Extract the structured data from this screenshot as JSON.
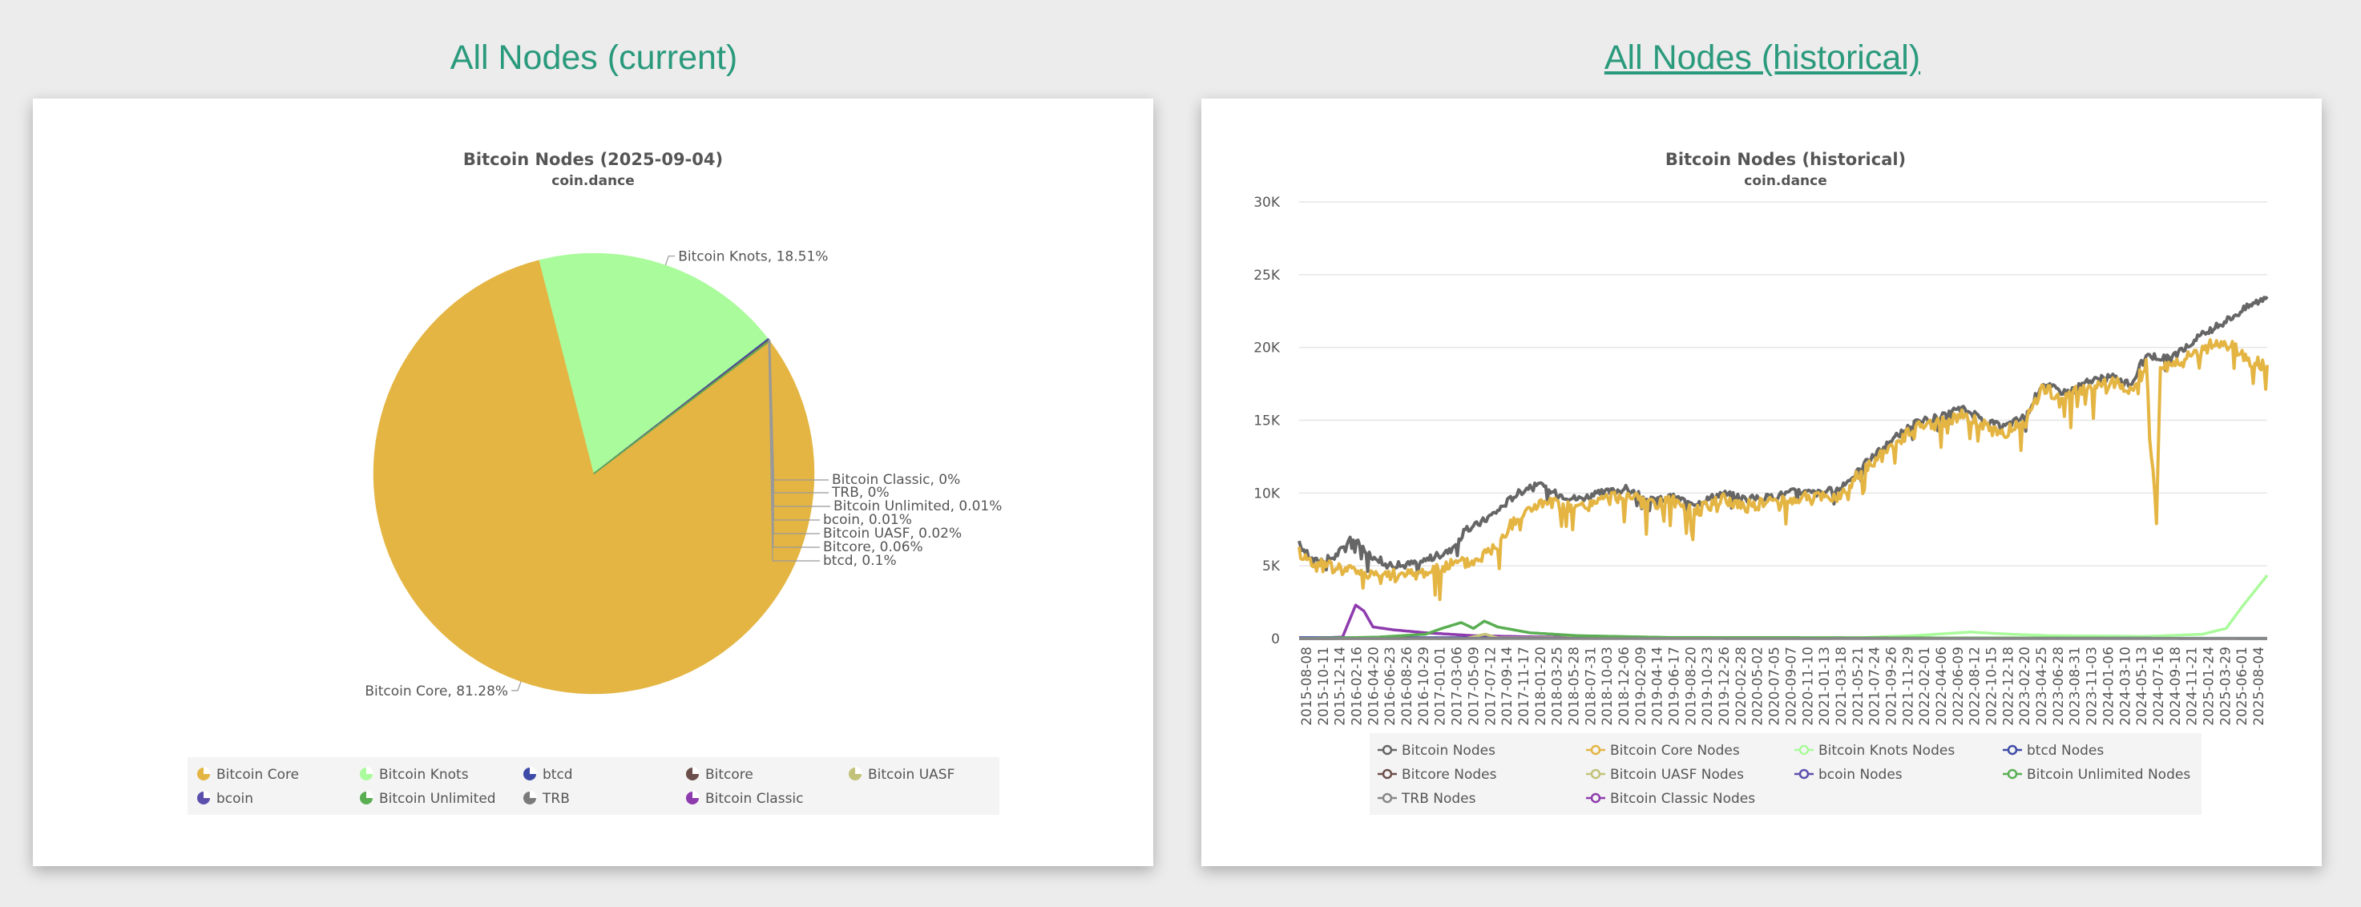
{
  "headings": {
    "current": "All Nodes (current)",
    "historical": "All Nodes (historical)"
  },
  "colors": {
    "heading": "#2a9a7c",
    "background": "#ececec"
  },
  "chart_data": [
    {
      "type": "pie",
      "title": "Bitcoin Nodes (2025-09-04)",
      "subtitle": "coin.dance",
      "slices": [
        {
          "name": "Bitcoin Core",
          "value": 81.28,
          "label": "Bitcoin Core, 81.28%",
          "color": "#e4b543"
        },
        {
          "name": "Bitcoin Knots",
          "value": 18.51,
          "label": "Bitcoin Knots, 18.51%",
          "color": "#aafb9b"
        },
        {
          "name": "btcd",
          "value": 0.1,
          "label": "btcd, 0.1%",
          "color": "#3e4ba6"
        },
        {
          "name": "Bitcore",
          "value": 0.06,
          "label": "Bitcore, 0.06%",
          "color": "#6b4f4a"
        },
        {
          "name": "Bitcoin UASF",
          "value": 0.02,
          "label": "Bitcoin UASF, 0.02%",
          "color": "#c2c27a"
        },
        {
          "name": "bcoin",
          "value": 0.01,
          "label": "bcoin, 0.01%",
          "color": "#5b4fae"
        },
        {
          "name": "Bitcoin Unlimited",
          "value": 0.01,
          "label": "Bitcoin Unlimited, 0.01%",
          "color": "#5aae52"
        },
        {
          "name": "TRB",
          "value": 0,
          "label": "TRB, 0%",
          "color": "#7a7a7a"
        },
        {
          "name": "Bitcoin Classic",
          "value": 0,
          "label": "Bitcoin Classic, 0%",
          "color": "#8e3bae"
        }
      ],
      "legend": {
        "placement": "bottom",
        "entries": [
          "Bitcoin Core",
          "Bitcoin Knots",
          "btcd",
          "Bitcore",
          "Bitcoin UASF",
          "bcoin",
          "Bitcoin Unlimited",
          "TRB",
          "Bitcoin Classic"
        ]
      }
    },
    {
      "type": "line",
      "title": "Bitcoin Nodes (historical)",
      "subtitle": "coin.dance",
      "ylim": [
        0,
        30000
      ],
      "yticks": [
        0,
        5000,
        10000,
        15000,
        20000,
        25000,
        30000
      ],
      "ytick_labels": [
        "0",
        "5K",
        "10K",
        "15K",
        "20K",
        "25K",
        "30K"
      ],
      "grid": true,
      "x_tick_labels": [
        "2015-08-08",
        "2015-10-11",
        "2015-12-14",
        "2016-02-16",
        "2016-04-20",
        "2016-06-23",
        "2016-08-26",
        "2016-10-29",
        "2017-01-01",
        "2017-03-06",
        "2017-05-09",
        "2017-07-12",
        "2017-09-14",
        "2017-11-17",
        "2018-01-20",
        "2018-03-25",
        "2018-05-28",
        "2018-07-31",
        "2018-10-03",
        "2018-12-06",
        "2019-02-09",
        "2019-04-14",
        "2019-06-17",
        "2019-08-20",
        "2019-10-23",
        "2019-12-26",
        "2020-02-28",
        "2020-05-02",
        "2020-07-05",
        "2020-09-07",
        "2020-11-10",
        "2021-01-13",
        "2021-03-18",
        "2021-05-21",
        "2021-07-24",
        "2021-09-26",
        "2021-11-29",
        "2022-02-01",
        "2022-04-06",
        "2022-06-09",
        "2022-08-12",
        "2022-10-15",
        "2022-12-18",
        "2023-02-20",
        "2023-04-25",
        "2023-06-28",
        "2023-08-31",
        "2023-11-03",
        "2024-01-06",
        "2024-03-10",
        "2024-05-13",
        "2024-07-16",
        "2024-09-18",
        "2024-11-21",
        "2025-01-24",
        "2025-03-29",
        "2025-06-01",
        "2025-08-04"
      ],
      "x_range": [
        "2015-08-08",
        "2025-09-04"
      ],
      "series": [
        {
          "name": "Bitcoin Nodes",
          "color": "#666666",
          "points": [
            [
              "2015-08-08",
              6500
            ],
            [
              "2015-10-01",
              5300
            ],
            [
              "2015-12-20",
              5600
            ],
            [
              "2016-03-01",
              7000
            ],
            [
              "2016-05-01",
              5800
            ],
            [
              "2016-07-01",
              5200
            ],
            [
              "2016-09-01",
              5000
            ],
            [
              "2016-12-01",
              5400
            ],
            [
              "2017-03-01",
              6000
            ],
            [
              "2017-05-01",
              7400
            ],
            [
              "2017-07-01",
              8000
            ],
            [
              "2017-09-01",
              8800
            ],
            [
              "2017-11-01",
              9800
            ],
            [
              "2018-01-20",
              10700
            ],
            [
              "2018-04-01",
              10000
            ],
            [
              "2018-07-01",
              9600
            ],
            [
              "2018-10-01",
              10000
            ],
            [
              "2019-01-01",
              10300
            ],
            [
              "2019-04-01",
              9500
            ],
            [
              "2019-07-01",
              9700
            ],
            [
              "2019-10-01",
              9300
            ],
            [
              "2020-01-01",
              10000
            ],
            [
              "2020-04-01",
              9600
            ],
            [
              "2020-07-01",
              9700
            ],
            [
              "2020-10-01",
              10100
            ],
            [
              "2021-01-01",
              10000
            ],
            [
              "2021-04-01",
              10300
            ],
            [
              "2021-06-01",
              11700
            ],
            [
              "2021-09-01",
              13000
            ],
            [
              "2021-11-01",
              14000
            ],
            [
              "2022-01-01",
              14800
            ],
            [
              "2022-04-01",
              15200
            ],
            [
              "2022-07-01",
              15800
            ],
            [
              "2022-10-01",
              15000
            ],
            [
              "2022-12-01",
              14500
            ],
            [
              "2023-03-01",
              15300
            ],
            [
              "2023-05-01",
              17500
            ],
            [
              "2023-08-01",
              16900
            ],
            [
              "2023-11-01",
              17700
            ],
            [
              "2024-02-01",
              18000
            ],
            [
              "2024-04-01",
              17400
            ],
            [
              "2024-06-01",
              19500
            ],
            [
              "2024-09-01",
              19200
            ],
            [
              "2024-11-01",
              20000
            ],
            [
              "2025-01-01",
              20900
            ],
            [
              "2025-03-01",
              21500
            ],
            [
              "2025-05-01",
              22200
            ],
            [
              "2025-07-01",
              22900
            ],
            [
              "2025-09-04",
              23500
            ]
          ]
        },
        {
          "name": "Bitcoin Core Nodes",
          "color": "#e4b543",
          "points": [
            [
              "2015-08-08",
              6000
            ],
            [
              "2015-10-01",
              5100
            ],
            [
              "2015-12-20",
              4900
            ],
            [
              "2016-03-01",
              4700
            ],
            [
              "2016-06-01",
              4500
            ],
            [
              "2016-09-01",
              4300
            ],
            [
              "2016-12-01",
              4600
            ],
            [
              "2017-03-01",
              5100
            ],
            [
              "2017-06-01",
              5300
            ],
            [
              "2017-09-01",
              6500
            ],
            [
              "2017-11-01",
              8000
            ],
            [
              "2018-01-20",
              9200
            ],
            [
              "2018-04-01",
              9300
            ],
            [
              "2018-07-01",
              8900
            ],
            [
              "2018-10-01",
              9500
            ],
            [
              "2019-01-01",
              9900
            ],
            [
              "2019-04-01",
              9100
            ],
            [
              "2019-07-01",
              9400
            ],
            [
              "2019-10-01",
              8800
            ],
            [
              "2020-01-01",
              9600
            ],
            [
              "2020-04-01",
              9100
            ],
            [
              "2020-07-01",
              9400
            ],
            [
              "2020-10-01",
              9700
            ],
            [
              "2021-01-01",
              9600
            ],
            [
              "2021-04-01",
              9900
            ],
            [
              "2021-06-01",
              11200
            ],
            [
              "2021-09-01",
              12600
            ],
            [
              "2021-11-01",
              13600
            ],
            [
              "2022-01-01",
              14400
            ],
            [
              "2022-04-01",
              14800
            ],
            [
              "2022-07-01",
              15400
            ],
            [
              "2022-10-01",
              14600
            ],
            [
              "2022-12-01",
              14000
            ],
            [
              "2023-03-01",
              14900
            ],
            [
              "2023-05-01",
              17200
            ],
            [
              "2023-08-01",
              16600
            ],
            [
              "2023-11-01",
              17300
            ],
            [
              "2024-02-01",
              17600
            ],
            [
              "2024-04-01",
              16900
            ],
            [
              "2024-06-01",
              19000
            ],
            [
              "2024-07-10",
              8000
            ],
            [
              "2024-07-25",
              19000
            ],
            [
              "2024-09-01",
              18700
            ],
            [
              "2024-11-01",
              19200
            ],
            [
              "2025-01-01",
              19900
            ],
            [
              "2025-03-01",
              20400
            ],
            [
              "2025-05-01",
              20000
            ],
            [
              "2025-07-01",
              19100
            ],
            [
              "2025-09-04",
              18800
            ]
          ]
        },
        {
          "name": "Bitcoin Knots Nodes",
          "color": "#aafb9b",
          "points": [
            [
              "2015-08-08",
              0
            ],
            [
              "2021-06-01",
              50
            ],
            [
              "2022-01-01",
              200
            ],
            [
              "2022-08-01",
              450
            ],
            [
              "2023-01-01",
              300
            ],
            [
              "2023-06-01",
              200
            ],
            [
              "2024-06-01",
              150
            ],
            [
              "2025-01-01",
              300
            ],
            [
              "2025-04-01",
              700
            ],
            [
              "2025-06-01",
              2200
            ],
            [
              "2025-09-04",
              4350
            ]
          ]
        },
        {
          "name": "btcd Nodes",
          "color": "#3e4ba6",
          "points": [
            [
              "2015-08-08",
              60
            ],
            [
              "2025-09-04",
              20
            ]
          ]
        },
        {
          "name": "Bitcore Nodes",
          "color": "#6b4f4a",
          "points": [
            [
              "2015-08-08",
              0
            ],
            [
              "2016-06-01",
              20
            ],
            [
              "2025-09-04",
              15
            ]
          ]
        },
        {
          "name": "Bitcoin UASF Nodes",
          "color": "#c2c27a",
          "points": [
            [
              "2015-08-08",
              0
            ],
            [
              "2017-05-01",
              0
            ],
            [
              "2017-07-15",
              300
            ],
            [
              "2017-09-01",
              50
            ],
            [
              "2025-09-04",
              5
            ]
          ]
        },
        {
          "name": "bcoin Nodes",
          "color": "#5b4fae",
          "points": [
            [
              "2015-08-08",
              0
            ],
            [
              "2017-01-01",
              10
            ],
            [
              "2025-09-04",
              5
            ]
          ]
        },
        {
          "name": "Bitcoin Unlimited Nodes",
          "color": "#5aae52",
          "points": [
            [
              "2015-08-08",
              0
            ],
            [
              "2016-06-01",
              100
            ],
            [
              "2016-12-01",
              300
            ],
            [
              "2017-02-01",
              700
            ],
            [
              "2017-04-15",
              1100
            ],
            [
              "2017-06-01",
              700
            ],
            [
              "2017-07-12",
              1200
            ],
            [
              "2017-09-01",
              800
            ],
            [
              "2018-01-01",
              400
            ],
            [
              "2018-07-01",
              200
            ],
            [
              "2019-06-01",
              80
            ],
            [
              "2025-09-04",
              5
            ]
          ]
        },
        {
          "name": "TRB Nodes",
          "color": "#888888",
          "points": [
            [
              "2015-08-08",
              0
            ],
            [
              "2025-09-04",
              5
            ]
          ]
        },
        {
          "name": "Bitcoin Classic Nodes",
          "color": "#8e3bae",
          "points": [
            [
              "2015-08-08",
              0
            ],
            [
              "2016-01-20",
              100
            ],
            [
              "2016-03-10",
              2300
            ],
            [
              "2016-04-10",
              1900
            ],
            [
              "2016-05-15",
              800
            ],
            [
              "2016-08-01",
              600
            ],
            [
              "2016-12-01",
              400
            ],
            [
              "2017-06-01",
              200
            ],
            [
              "2018-01-01",
              120
            ],
            [
              "2019-01-01",
              60
            ],
            [
              "2025-09-04",
              0
            ]
          ]
        }
      ],
      "legend": {
        "placement": "bottom",
        "entries": [
          "Bitcoin Nodes",
          "Bitcoin Core Nodes",
          "Bitcoin Knots Nodes",
          "btcd Nodes",
          "Bitcore Nodes",
          "Bitcoin UASF Nodes",
          "bcoin Nodes",
          "Bitcoin Unlimited Nodes",
          "TRB Nodes",
          "Bitcoin Classic Nodes"
        ]
      }
    }
  ]
}
